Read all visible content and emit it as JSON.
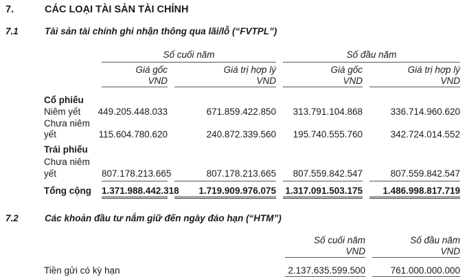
{
  "section": {
    "number": "7.",
    "title": "CÁC LOẠI TÀI SẢN TÀI CHÍNH"
  },
  "fvtpl": {
    "number": "7.1",
    "title": "Tài sản tài chính ghi nhận thông qua lãi/lỗ (“FVTPL”)",
    "group_headers": [
      "Số cuối năm",
      "Số đầu năm"
    ],
    "col_headers": [
      "Giá gốc",
      "Giá trị hợp lý",
      "Giá gốc",
      "Giá trị hợp lý"
    ],
    "unit": "VND",
    "stocks_label": "Cổ phiếu",
    "listed_label": "Niêm yết",
    "listed": [
      "449.205.448.033",
      "671.859.422.850",
      "313.791.104.868",
      "336.714.960.620"
    ],
    "unlisted_label_1": "Chưa niêm",
    "unlisted_label_2": "yết",
    "unlisted": [
      "115.604.780.620",
      "240.872.339.560",
      "195.740.555.760",
      "342.724.014.552"
    ],
    "bonds_label": "Trái phiếu",
    "bonds_unlisted": [
      "807.178.213.665",
      "807.178.213.665",
      "807.559.842.547",
      "807.559.842.547"
    ],
    "total_label": "Tổng cộng",
    "total": [
      "1.371.988.442.318",
      "1.719.909.976.075",
      "1.317.091.503.175",
      "1.486.998.817.719"
    ]
  },
  "htm": {
    "number": "7.2",
    "title": "Các khoản đầu tư nắm giữ đến ngày đáo hạn (“HTM”)",
    "col_headers": [
      "Số cuối năm",
      "Số đầu năm"
    ],
    "unit": "VND",
    "row_label": "Tiền gửi có kỳ hạn",
    "row_values": [
      "2.137.635.599.500",
      "761.000.000.000"
    ]
  }
}
